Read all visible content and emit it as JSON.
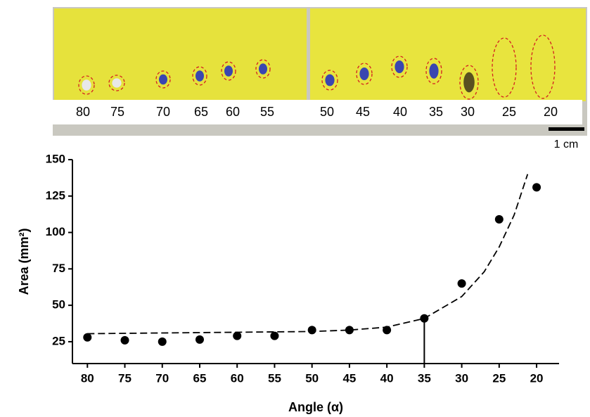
{
  "photo": {
    "labels": [
      "80",
      "75",
      "70",
      "65",
      "60",
      "55",
      "50",
      "45",
      "40",
      "35",
      "30",
      "25",
      "20"
    ],
    "scale_label": "1 cm"
  },
  "chart_data": {
    "type": "scatter",
    "xlabel": "Angle (α)",
    "ylabel": "Area (mm²)",
    "x": [
      80,
      75,
      70,
      65,
      60,
      55,
      50,
      45,
      40,
      35,
      30,
      25,
      20
    ],
    "values": [
      28,
      26,
      25,
      26.5,
      29,
      29,
      33,
      33,
      33,
      41,
      65,
      109,
      131
    ],
    "color": "#000000",
    "fit": {
      "x": [
        80,
        70,
        60,
        50,
        45,
        40,
        35,
        30,
        27,
        25,
        23,
        21.2
      ],
      "values": [
        30.5,
        31,
        31.5,
        32,
        33,
        35,
        41,
        56,
        73,
        90,
        112,
        140
      ],
      "color": "#000000"
    },
    "highlight_x": 35,
    "xlim": [
      82,
      17
    ],
    "xticks": [
      80,
      75,
      70,
      65,
      60,
      55,
      50,
      45,
      40,
      35,
      30,
      25,
      20
    ],
    "ylim": [
      10,
      150
    ],
    "yticks": [
      25,
      50,
      75,
      100,
      125,
      150
    ]
  }
}
